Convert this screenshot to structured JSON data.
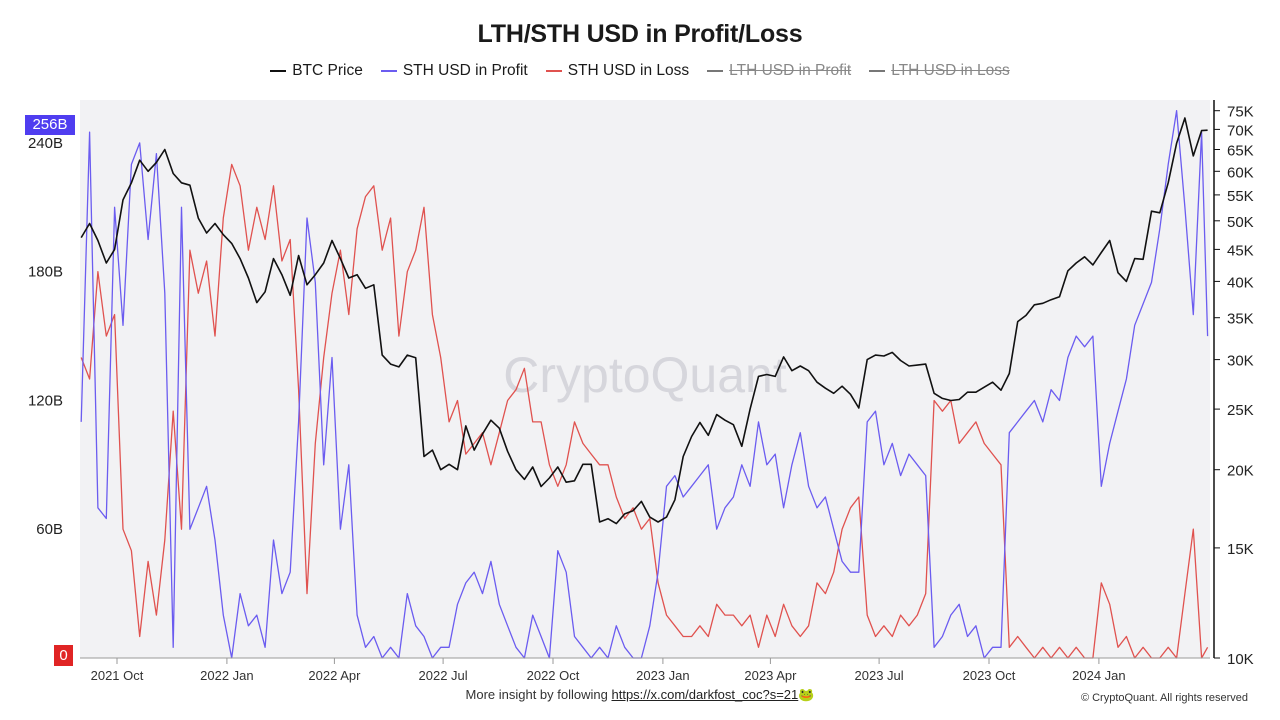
{
  "header": {
    "title": "LTH/STH USD in Profit/Loss"
  },
  "legend": [
    {
      "label": "BTC Price",
      "color": "#111111",
      "hidden": false
    },
    {
      "label": "STH USD in Profit",
      "color": "#6b5cf0",
      "hidden": false
    },
    {
      "label": "STH USD in Loss",
      "color": "#e0524f",
      "hidden": false
    },
    {
      "label": "LTH USD in Profit",
      "color": "#777777",
      "hidden": true
    },
    {
      "label": "LTH USD in Loss",
      "color": "#777777",
      "hidden": true
    }
  ],
  "badges": {
    "left_top": "256B",
    "left_zero": "0"
  },
  "watermark": "CryptoQuant",
  "footer": {
    "text": "More insight by following ",
    "url": "https://x.com/darkfost_coc?s=21",
    "emoji": "🐸",
    "copyright": "© CryptoQuant. All rights reserved"
  },
  "chart_data": {
    "type": "line",
    "title": "LTH/STH USD in Profit/Loss",
    "x_tick_labels": [
      "2021 Oct",
      "2022 Jan",
      "2022 Apr",
      "2022 Jul",
      "2022 Oct",
      "2023 Jan",
      "2023 Apr",
      "2023 Jul",
      "2023 Oct",
      "2024 Jan"
    ],
    "x_range": [
      "2021-08-31",
      "2024-04-03"
    ],
    "left_axis": {
      "unit": "USD",
      "ticks": [
        "0",
        "60B",
        "120B",
        "180B",
        "240B"
      ],
      "tick_values": [
        0,
        60,
        120,
        180,
        240
      ],
      "range": [
        0,
        260
      ]
    },
    "right_axis": {
      "scale": "log",
      "ticks": [
        "10K",
        "15K",
        "20K",
        "25K",
        "30K",
        "35K",
        "40K",
        "45K",
        "50K",
        "55K",
        "60K",
        "65K",
        "70K",
        "75K"
      ],
      "tick_values": [
        10000,
        15000,
        20000,
        25000,
        30000,
        35000,
        40000,
        45000,
        50000,
        55000,
        60000,
        65000,
        70000,
        75000
      ],
      "range": [
        10000,
        78000
      ]
    },
    "grid": false,
    "legend_position": "top-center",
    "series": [
      {
        "name": "BTC Price",
        "axis": "right",
        "color": "#111111",
        "x": [
          "2021-09-01",
          "2021-09-08",
          "2021-09-15",
          "2021-09-22",
          "2021-09-29",
          "2021-10-06",
          "2021-10-13",
          "2021-10-20",
          "2021-10-27",
          "2021-11-03",
          "2021-11-10",
          "2021-11-17",
          "2021-11-24",
          "2021-12-01",
          "2021-12-08",
          "2021-12-15",
          "2021-12-22",
          "2021-12-29",
          "2022-01-05",
          "2022-01-12",
          "2022-01-19",
          "2022-01-26",
          "2022-02-02",
          "2022-02-09",
          "2022-02-16",
          "2022-02-23",
          "2022-03-02",
          "2022-03-09",
          "2022-03-16",
          "2022-03-23",
          "2022-03-30",
          "2022-04-06",
          "2022-04-13",
          "2022-04-20",
          "2022-04-27",
          "2022-05-04",
          "2022-05-11",
          "2022-05-18",
          "2022-05-25",
          "2022-06-01",
          "2022-06-08",
          "2022-06-15",
          "2022-06-22",
          "2022-06-29",
          "2022-07-06",
          "2022-07-13",
          "2022-07-20",
          "2022-07-27",
          "2022-08-03",
          "2022-08-10",
          "2022-08-17",
          "2022-08-24",
          "2022-08-31",
          "2022-09-07",
          "2022-09-14",
          "2022-09-21",
          "2022-09-28",
          "2022-10-05",
          "2022-10-12",
          "2022-10-19",
          "2022-10-26",
          "2022-11-02",
          "2022-11-09",
          "2022-11-16",
          "2022-11-23",
          "2022-11-30",
          "2022-12-07",
          "2022-12-14",
          "2022-12-21",
          "2022-12-28",
          "2023-01-04",
          "2023-01-11",
          "2023-01-18",
          "2023-01-25",
          "2023-02-01",
          "2023-02-08",
          "2023-02-15",
          "2023-02-22",
          "2023-03-01",
          "2023-03-08",
          "2023-03-15",
          "2023-03-22",
          "2023-03-29",
          "2023-04-05",
          "2023-04-12",
          "2023-04-19",
          "2023-04-26",
          "2023-05-03",
          "2023-05-10",
          "2023-05-17",
          "2023-05-24",
          "2023-05-31",
          "2023-06-07",
          "2023-06-14",
          "2023-06-21",
          "2023-06-28",
          "2023-07-05",
          "2023-07-12",
          "2023-07-19",
          "2023-07-26",
          "2023-08-02",
          "2023-08-09",
          "2023-08-16",
          "2023-08-23",
          "2023-08-30",
          "2023-09-06",
          "2023-09-13",
          "2023-09-20",
          "2023-09-27",
          "2023-10-04",
          "2023-10-11",
          "2023-10-18",
          "2023-10-25",
          "2023-11-01",
          "2023-11-08",
          "2023-11-15",
          "2023-11-22",
          "2023-11-29",
          "2023-12-06",
          "2023-12-13",
          "2023-12-20",
          "2023-12-27",
          "2024-01-03",
          "2024-01-10",
          "2024-01-17",
          "2024-01-24",
          "2024-01-31",
          "2024-02-07",
          "2024-02-14",
          "2024-02-21",
          "2024-02-28",
          "2024-03-06",
          "2024-03-13",
          "2024-03-20",
          "2024-03-27",
          "2024-04-01"
        ],
        "values": [
          47000,
          49500,
          46500,
          42800,
          45000,
          54000,
          57500,
          62500,
          60000,
          62000,
          65000,
          59500,
          57500,
          57000,
          50500,
          47800,
          49500,
          47500,
          46000,
          43500,
          40500,
          37000,
          38500,
          43500,
          41000,
          38000,
          44000,
          39500,
          41000,
          42800,
          46500,
          43500,
          40500,
          41000,
          39000,
          39500,
          30500,
          29500,
          29200,
          30500,
          30200,
          21000,
          21500,
          20000,
          20400,
          20000,
          23500,
          21500,
          22800,
          24000,
          23300,
          21400,
          20000,
          19300,
          20200,
          18800,
          19400,
          20200,
          19100,
          19200,
          20400,
          20400,
          16500,
          16700,
          16400,
          17000,
          17200,
          17800,
          16800,
          16500,
          16800,
          17900,
          21000,
          22600,
          23800,
          22700,
          24500,
          24000,
          23600,
          21800,
          25000,
          28200,
          28400,
          28200,
          30300,
          28800,
          29300,
          28800,
          27600,
          27000,
          26500,
          27200,
          26400,
          25100,
          30000,
          30500,
          30400,
          30800,
          29900,
          29300,
          29400,
          29500,
          26500,
          26000,
          25800,
          25900,
          26600,
          26600,
          27100,
          27600,
          26800,
          28500,
          34500,
          35300,
          36700,
          36900,
          37400,
          37800,
          41600,
          42800,
          43800,
          42500,
          44500,
          46500,
          41300,
          40000,
          43500,
          43400,
          51800,
          51500,
          57500,
          66500,
          73000,
          63500,
          69700,
          69800
        ]
      },
      {
        "name": "STH USD in Profit",
        "axis": "left",
        "color": "#6b5cf0",
        "x": [
          "2021-09-01",
          "2021-09-08",
          "2021-09-15",
          "2021-09-22",
          "2021-09-29",
          "2021-10-06",
          "2021-10-13",
          "2021-10-20",
          "2021-10-27",
          "2021-11-03",
          "2021-11-10",
          "2021-11-17",
          "2021-11-24",
          "2021-12-01",
          "2021-12-08",
          "2021-12-15",
          "2021-12-22",
          "2021-12-29",
          "2022-01-05",
          "2022-01-12",
          "2022-01-19",
          "2022-01-26",
          "2022-02-02",
          "2022-02-09",
          "2022-02-16",
          "2022-02-23",
          "2022-03-02",
          "2022-03-09",
          "2022-03-16",
          "2022-03-23",
          "2022-03-30",
          "2022-04-06",
          "2022-04-13",
          "2022-04-20",
          "2022-04-27",
          "2022-05-04",
          "2022-05-11",
          "2022-05-18",
          "2022-05-25",
          "2022-06-01",
          "2022-06-08",
          "2022-06-15",
          "2022-06-22",
          "2022-06-29",
          "2022-07-06",
          "2022-07-13",
          "2022-07-20",
          "2022-07-27",
          "2022-08-03",
          "2022-08-10",
          "2022-08-17",
          "2022-08-24",
          "2022-08-31",
          "2022-09-07",
          "2022-09-14",
          "2022-09-21",
          "2022-09-28",
          "2022-10-05",
          "2022-10-12",
          "2022-10-19",
          "2022-10-26",
          "2022-11-02",
          "2022-11-09",
          "2022-11-16",
          "2022-11-23",
          "2022-11-30",
          "2022-12-07",
          "2022-12-14",
          "2022-12-21",
          "2022-12-28",
          "2023-01-04",
          "2023-01-11",
          "2023-01-18",
          "2023-01-25",
          "2023-02-01",
          "2023-02-08",
          "2023-02-15",
          "2023-02-22",
          "2023-03-01",
          "2023-03-08",
          "2023-03-15",
          "2023-03-22",
          "2023-03-29",
          "2023-04-05",
          "2023-04-12",
          "2023-04-19",
          "2023-04-26",
          "2023-05-03",
          "2023-05-10",
          "2023-05-17",
          "2023-05-24",
          "2023-05-31",
          "2023-06-07",
          "2023-06-14",
          "2023-06-21",
          "2023-06-28",
          "2023-07-05",
          "2023-07-12",
          "2023-07-19",
          "2023-07-26",
          "2023-08-02",
          "2023-08-09",
          "2023-08-16",
          "2023-08-23",
          "2023-08-30",
          "2023-09-06",
          "2023-09-13",
          "2023-09-20",
          "2023-09-27",
          "2023-10-04",
          "2023-10-11",
          "2023-10-18",
          "2023-10-25",
          "2023-11-01",
          "2023-11-08",
          "2023-11-15",
          "2023-11-22",
          "2023-11-29",
          "2023-12-06",
          "2023-12-13",
          "2023-12-20",
          "2023-12-27",
          "2024-01-03",
          "2024-01-10",
          "2024-01-17",
          "2024-01-24",
          "2024-01-31",
          "2024-02-07",
          "2024-02-14",
          "2024-02-21",
          "2024-02-28",
          "2024-03-06",
          "2024-03-13",
          "2024-03-20",
          "2024-03-27",
          "2024-04-01"
        ],
        "values": [
          110,
          245,
          70,
          65,
          210,
          155,
          230,
          240,
          195,
          235,
          170,
          5,
          210,
          60,
          70,
          80,
          55,
          20,
          0,
          30,
          15,
          20,
          5,
          55,
          30,
          40,
          110,
          205,
          175,
          90,
          140,
          60,
          90,
          20,
          5,
          10,
          0,
          5,
          0,
          30,
          15,
          10,
          0,
          5,
          5,
          25,
          35,
          40,
          30,
          45,
          25,
          15,
          5,
          0,
          20,
          10,
          0,
          50,
          40,
          10,
          5,
          0,
          5,
          0,
          15,
          5,
          0,
          0,
          15,
          40,
          80,
          85,
          75,
          80,
          85,
          90,
          60,
          70,
          75,
          90,
          80,
          110,
          90,
          95,
          70,
          90,
          105,
          80,
          70,
          75,
          60,
          45,
          40,
          40,
          110,
          115,
          90,
          100,
          85,
          95,
          90,
          85,
          5,
          10,
          20,
          25,
          10,
          15,
          0,
          5,
          5,
          105,
          110,
          115,
          120,
          110,
          125,
          120,
          140,
          150,
          145,
          150,
          80,
          100,
          115,
          130,
          155,
          165,
          175,
          200,
          230,
          255,
          210,
          160,
          245,
          150
        ]
      },
      {
        "name": "STH USD in Loss",
        "axis": "left",
        "color": "#e0524f",
        "x": [
          "2021-09-01",
          "2021-09-08",
          "2021-09-15",
          "2021-09-22",
          "2021-09-29",
          "2021-10-06",
          "2021-10-13",
          "2021-10-20",
          "2021-10-27",
          "2021-11-03",
          "2021-11-10",
          "2021-11-17",
          "2021-11-24",
          "2021-12-01",
          "2021-12-08",
          "2021-12-15",
          "2021-12-22",
          "2021-12-29",
          "2022-01-05",
          "2022-01-12",
          "2022-01-19",
          "2022-01-26",
          "2022-02-02",
          "2022-02-09",
          "2022-02-16",
          "2022-02-23",
          "2022-03-02",
          "2022-03-09",
          "2022-03-16",
          "2022-03-23",
          "2022-03-30",
          "2022-04-06",
          "2022-04-13",
          "2022-04-20",
          "2022-04-27",
          "2022-05-04",
          "2022-05-11",
          "2022-05-18",
          "2022-05-25",
          "2022-06-01",
          "2022-06-08",
          "2022-06-15",
          "2022-06-22",
          "2022-06-29",
          "2022-07-06",
          "2022-07-13",
          "2022-07-20",
          "2022-07-27",
          "2022-08-03",
          "2022-08-10",
          "2022-08-17",
          "2022-08-24",
          "2022-08-31",
          "2022-09-07",
          "2022-09-14",
          "2022-09-21",
          "2022-09-28",
          "2022-10-05",
          "2022-10-12",
          "2022-10-19",
          "2022-10-26",
          "2022-11-02",
          "2022-11-09",
          "2022-11-16",
          "2022-11-23",
          "2022-11-30",
          "2022-12-07",
          "2022-12-14",
          "2022-12-21",
          "2022-12-28",
          "2023-01-04",
          "2023-01-11",
          "2023-01-18",
          "2023-01-25",
          "2023-02-01",
          "2023-02-08",
          "2023-02-15",
          "2023-02-22",
          "2023-03-01",
          "2023-03-08",
          "2023-03-15",
          "2023-03-22",
          "2023-03-29",
          "2023-04-05",
          "2023-04-12",
          "2023-04-19",
          "2023-04-26",
          "2023-05-03",
          "2023-05-10",
          "2023-05-17",
          "2023-05-24",
          "2023-05-31",
          "2023-06-07",
          "2023-06-14",
          "2023-06-21",
          "2023-06-28",
          "2023-07-05",
          "2023-07-12",
          "2023-07-19",
          "2023-07-26",
          "2023-08-02",
          "2023-08-09",
          "2023-08-16",
          "2023-08-23",
          "2023-08-30",
          "2023-09-06",
          "2023-09-13",
          "2023-09-20",
          "2023-09-27",
          "2023-10-04",
          "2023-10-11",
          "2023-10-18",
          "2023-10-25",
          "2023-11-01",
          "2023-11-08",
          "2023-11-15",
          "2023-11-22",
          "2023-11-29",
          "2023-12-06",
          "2023-12-13",
          "2023-12-20",
          "2023-12-27",
          "2024-01-03",
          "2024-01-10",
          "2024-01-17",
          "2024-01-24",
          "2024-01-31",
          "2024-02-07",
          "2024-02-14",
          "2024-02-21",
          "2024-02-28",
          "2024-03-06",
          "2024-03-13",
          "2024-03-20",
          "2024-03-27",
          "2024-04-01"
        ],
        "values": [
          140,
          130,
          180,
          150,
          160,
          60,
          50,
          10,
          45,
          20,
          55,
          115,
          60,
          190,
          170,
          185,
          150,
          205,
          230,
          220,
          190,
          210,
          195,
          220,
          185,
          195,
          125,
          30,
          100,
          140,
          170,
          190,
          160,
          200,
          215,
          220,
          190,
          205,
          150,
          180,
          190,
          210,
          160,
          140,
          110,
          120,
          95,
          100,
          105,
          90,
          105,
          120,
          125,
          135,
          110,
          110,
          90,
          80,
          90,
          110,
          100,
          95,
          90,
          90,
          75,
          65,
          70,
          60,
          65,
          35,
          20,
          15,
          10,
          10,
          15,
          10,
          25,
          20,
          20,
          15,
          20,
          5,
          20,
          10,
          25,
          15,
          10,
          15,
          35,
          30,
          40,
          60,
          70,
          75,
          20,
          10,
          15,
          10,
          20,
          15,
          20,
          30,
          120,
          115,
          120,
          100,
          105,
          110,
          100,
          95,
          90,
          5,
          10,
          5,
          0,
          5,
          0,
          5,
          0,
          5,
          0,
          0,
          35,
          25,
          5,
          10,
          0,
          5,
          0,
          0,
          5,
          0,
          30,
          60,
          0,
          5
        ]
      }
    ]
  }
}
